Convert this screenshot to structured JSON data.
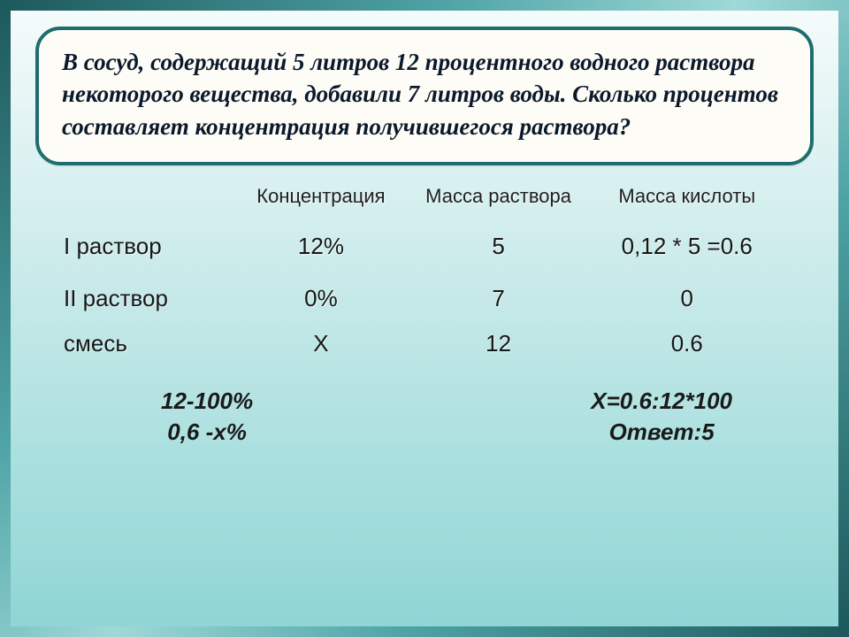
{
  "problem": {
    "text": "В сосуд, содержащий 5 литров 12 процентного водного раствора некоторого вещества, добавили 7 литров воды. Сколько процентов составляет концентрация получившегося раствора?",
    "card_bg": "#fefcf7",
    "card_border": "#1d6d6f",
    "font_size": 27
  },
  "table": {
    "headers": {
      "col0": "",
      "col1": "Концентрация",
      "col2": "Масса раствора",
      "col3": "Масса кислоты"
    },
    "rows": [
      {
        "label": "I раствор",
        "conc": "12%",
        "mass": "5",
        "acid": "0,12 * 5 =0.6"
      },
      {
        "label": "II раствор",
        "conc": "0%",
        "mass": "7",
        "acid": "0"
      },
      {
        "label": "смесь",
        "conc": "X",
        "mass": "12",
        "acid": "0.6"
      }
    ],
    "header_fontsize": 22,
    "cell_fontsize": 26,
    "text_color": "#171717"
  },
  "calc": {
    "left_line1": "12-100%",
    "left_line2": "0,6   -х%",
    "right_line1": "Х=0.6:12*100",
    "right_line2": "Ответ:5",
    "fontsize": 26
  },
  "colors": {
    "frame_border": "#2e7b7e",
    "bg_gradient_top": "#f5fbfb",
    "bg_gradient_bottom": "#8fd6d5"
  }
}
